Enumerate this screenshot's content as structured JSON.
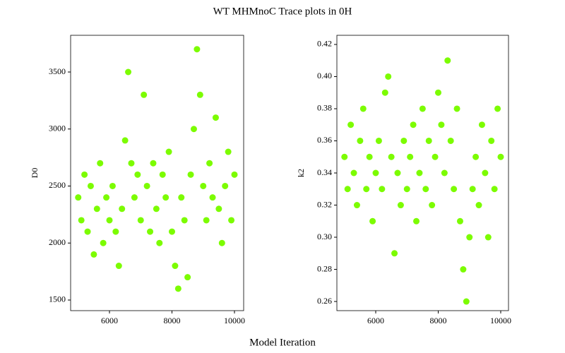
{
  "title": "WT MHMnoC Trace plots in 0H",
  "xlabel": "Model Iteration",
  "chart_data": [
    {
      "type": "scatter",
      "ylabel": "D0",
      "color": "#7cfc00",
      "xlim": [
        4757,
        10294
      ],
      "ylim": [
        1407,
        3822
      ],
      "xticks": [
        6000,
        8000,
        10000
      ],
      "yticks": [
        1500,
        2000,
        2500,
        3000,
        3500
      ],
      "x": [
        5000,
        5100,
        5200,
        5300,
        5400,
        5500,
        5600,
        5700,
        5800,
        5900,
        6000,
        6100,
        6200,
        6300,
        6400,
        6500,
        6600,
        6700,
        6800,
        6900,
        7000,
        7100,
        7200,
        7300,
        7400,
        7500,
        7600,
        7700,
        7800,
        7900,
        8000,
        8100,
        8200,
        8300,
        8400,
        8500,
        8600,
        8700,
        8800,
        8900,
        9000,
        9100,
        9200,
        9300,
        9400,
        9500,
        9600,
        9700,
        9800,
        9900,
        10000
      ],
      "values": [
        2400,
        2200,
        2600,
        2100,
        2500,
        1900,
        2300,
        2700,
        2000,
        2400,
        2200,
        2500,
        2100,
        1800,
        2300,
        2900,
        3500,
        2700,
        2400,
        2600,
        2200,
        3300,
        2500,
        2100,
        2700,
        2300,
        2000,
        2600,
        2400,
        2800,
        2100,
        1800,
        1600,
        2400,
        2200,
        1700,
        2600,
        3000,
        3700,
        3300,
        2500,
        2200,
        2700,
        2400,
        3100,
        2300,
        2000,
        2500,
        2800,
        2200,
        2600
      ]
    },
    {
      "type": "scatter",
      "ylabel": "k2",
      "color": "#7cfc00",
      "xlim": [
        4757,
        10249
      ],
      "ylim": [
        0.2543,
        0.4257
      ],
      "xticks": [
        6000,
        8000,
        10000
      ],
      "yticks": [
        0.26,
        0.28,
        {
          "value": 0.3,
          "label": "0.30"
        },
        0.32,
        0.34,
        0.36,
        0.38,
        {
          "value": 0.4,
          "label": "0.40"
        },
        0.42
      ],
      "x": [
        5000,
        5100,
        5200,
        5300,
        5400,
        5500,
        5600,
        5700,
        5800,
        5900,
        6000,
        6100,
        6200,
        6300,
        6400,
        6500,
        6600,
        6700,
        6800,
        6900,
        7000,
        7100,
        7200,
        7300,
        7400,
        7500,
        7600,
        7700,
        7800,
        7900,
        8000,
        8100,
        8200,
        8300,
        8400,
        8500,
        8600,
        8700,
        8800,
        8900,
        9000,
        9100,
        9200,
        9300,
        9400,
        9500,
        9600,
        9700,
        9800,
        9900,
        10000
      ],
      "values": [
        0.35,
        0.33,
        0.37,
        0.34,
        0.32,
        0.36,
        0.38,
        0.33,
        0.35,
        0.31,
        0.34,
        0.36,
        0.33,
        0.39,
        0.4,
        0.35,
        0.29,
        0.34,
        0.32,
        0.36,
        0.33,
        0.35,
        0.37,
        0.31,
        0.34,
        0.38,
        0.33,
        0.36,
        0.32,
        0.35,
        0.39,
        0.37,
        0.34,
        0.41,
        0.36,
        0.33,
        0.38,
        0.31,
        0.28,
        0.26,
        0.3,
        0.33,
        0.35,
        0.32,
        0.37,
        0.34,
        0.3,
        0.36,
        0.33,
        0.38,
        0.35
      ]
    }
  ]
}
